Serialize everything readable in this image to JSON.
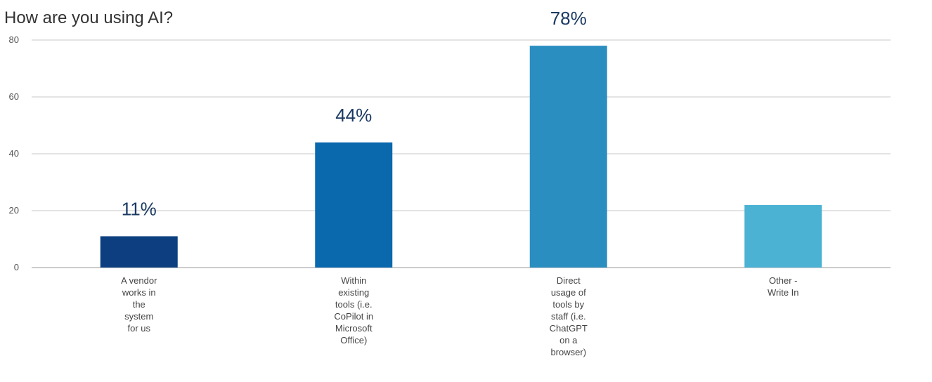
{
  "chart_data": {
    "type": "bar",
    "title": "How are you using AI?",
    "xlabel": "",
    "ylabel": "",
    "ylim": [
      0,
      80
    ],
    "yticks": [
      0,
      20,
      40,
      60,
      80
    ],
    "grid": true,
    "categories": [
      [
        "A vendor",
        "works in",
        "the",
        "system",
        "for us"
      ],
      [
        "Within",
        "existing",
        "tools (i.e.",
        "CoPilot in",
        "Microsoft",
        "Office)"
      ],
      [
        "Direct",
        "usage of",
        "tools by",
        "staff (i.e.",
        "ChatGPT",
        "on a",
        "browser)"
      ],
      [
        "Other -",
        "Write In"
      ]
    ],
    "values": [
      11,
      44,
      78,
      22
    ],
    "data_labels": [
      "11%",
      "44%",
      "78%",
      ""
    ],
    "colors": [
      "#0d3f80",
      "#0a68ad",
      "#2b8ec0",
      "#4bb2d4"
    ]
  },
  "colors": {
    "grid": "#c8c8c8",
    "axis": "#999999",
    "label": "#1b3a63"
  }
}
